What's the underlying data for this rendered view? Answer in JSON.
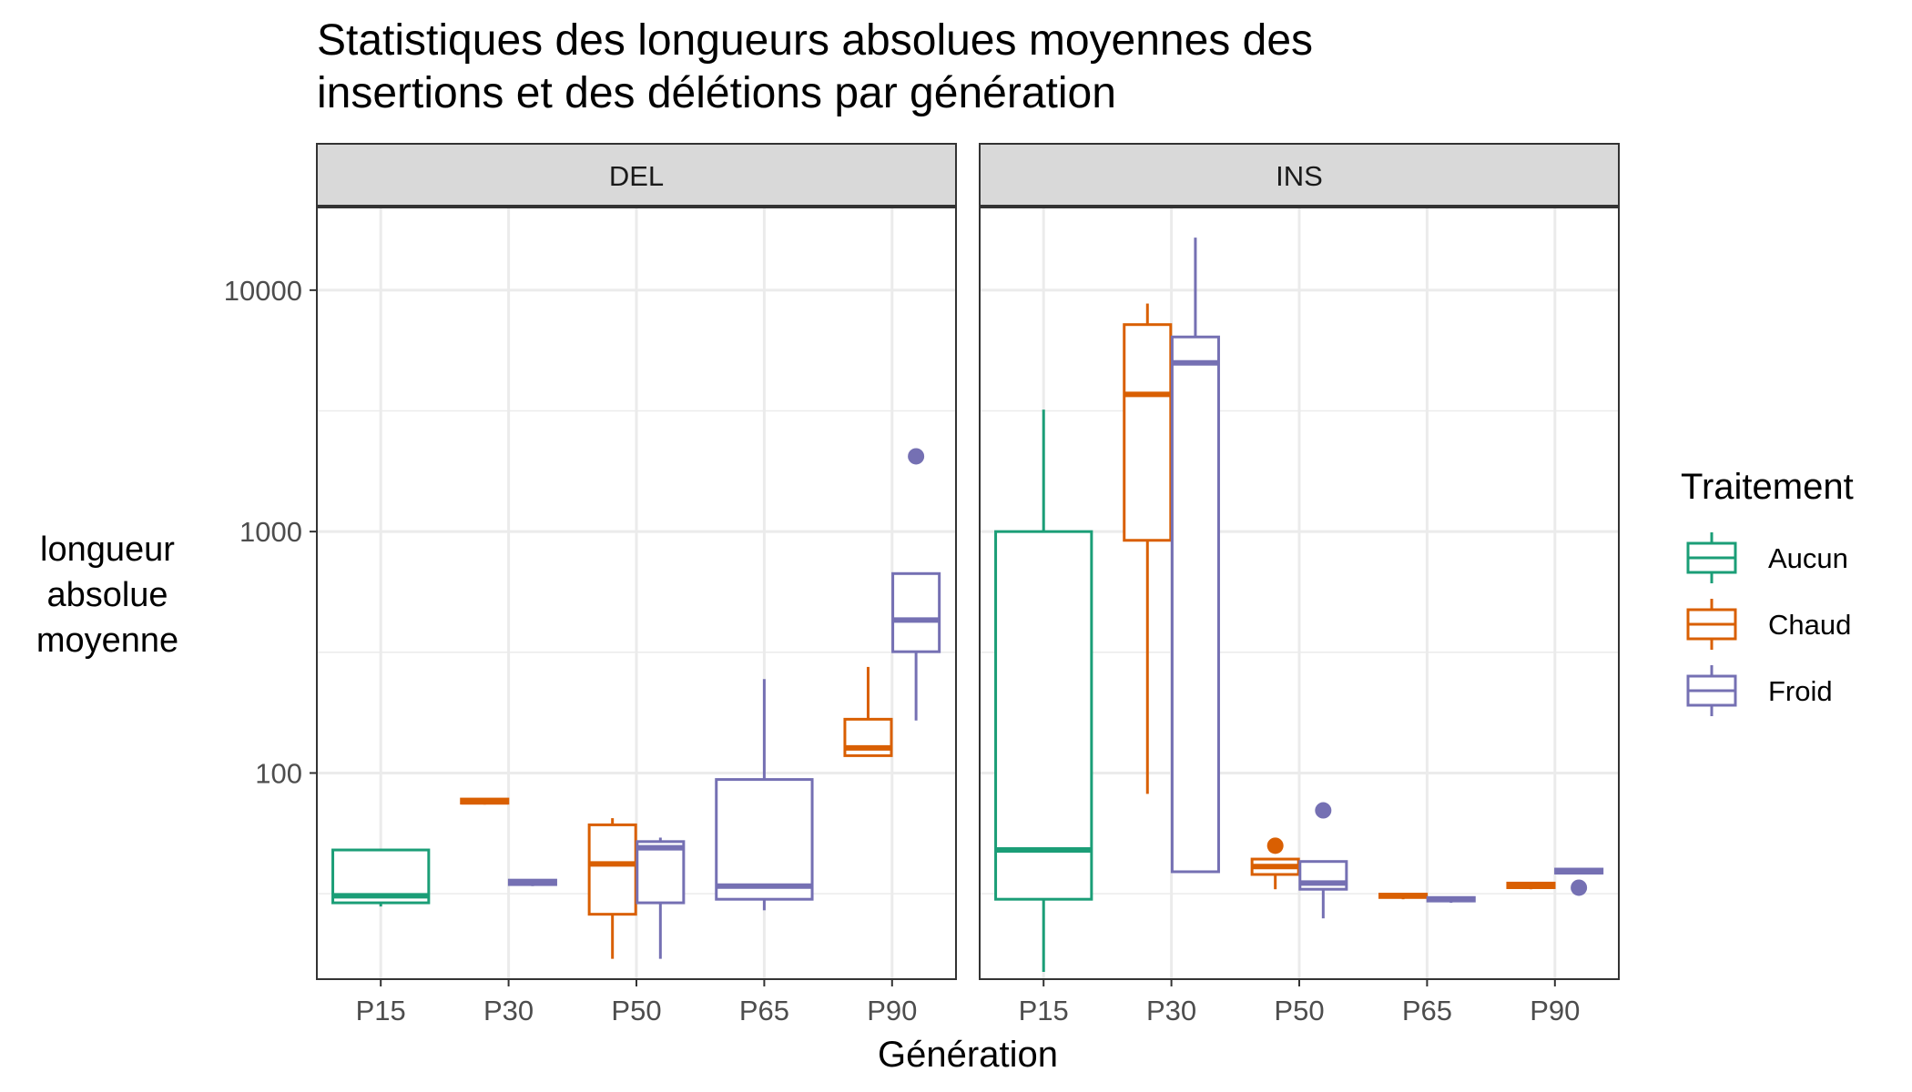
{
  "chart_data": {
    "type": "boxplot",
    "title": [
      "Statistiques des longueurs absolues moyennes des",
      "insertions et des délétions par génération"
    ],
    "xlabel": "Génération",
    "ylabel": [
      "longueur",
      "absolue",
      "moyenne"
    ],
    "y_scale": "log10",
    "ylim": [
      14,
      22000
    ],
    "y_ticks": [
      100,
      1000,
      10000
    ],
    "y_tick_labels": [
      "100",
      "1000",
      "10000"
    ],
    "categories": [
      "P15",
      "P30",
      "P50",
      "P65",
      "P90"
    ],
    "panels": [
      "DEL",
      "INS"
    ],
    "legend": {
      "title": "Traitement",
      "placement": "right",
      "entries": [
        {
          "name": "Aucun",
          "color": "#1B9E77"
        },
        {
          "name": "Chaud",
          "color": "#D95F02"
        },
        {
          "name": "Froid",
          "color": "#7570B3"
        }
      ]
    },
    "boxes": [
      {
        "panel": "DEL",
        "category": "P15",
        "group": "Aucun",
        "min": 28,
        "q1": 29,
        "median": 31,
        "q3": 48,
        "max": 48,
        "outliers": []
      },
      {
        "panel": "DEL",
        "category": "P30",
        "group": "Chaud",
        "min": 74,
        "q1": 75,
        "median": 76,
        "q3": 78,
        "max": 78,
        "outliers": []
      },
      {
        "panel": "DEL",
        "category": "P30",
        "group": "Froid",
        "min": 34,
        "q1": 34.5,
        "median": 35,
        "q3": 36,
        "max": 36,
        "outliers": []
      },
      {
        "panel": "DEL",
        "category": "P50",
        "group": "Chaud",
        "min": 17,
        "q1": 26,
        "median": 42,
        "q3": 61,
        "max": 65,
        "outliers": []
      },
      {
        "panel": "DEL",
        "category": "P50",
        "group": "Froid",
        "min": 17,
        "q1": 29,
        "median": 49,
        "q3": 52,
        "max": 54,
        "outliers": []
      },
      {
        "panel": "DEL",
        "category": "P65",
        "group": "Froid",
        "min": 27,
        "q1": 30,
        "median": 34,
        "q3": 94,
        "max": 245,
        "outliers": []
      },
      {
        "panel": "DEL",
        "category": "P90",
        "group": "Chaud",
        "min": 117,
        "q1": 118,
        "median": 127,
        "q3": 167,
        "max": 275,
        "outliers": []
      },
      {
        "panel": "DEL",
        "category": "P90",
        "group": "Froid",
        "min": 165,
        "q1": 318,
        "median": 430,
        "q3": 670,
        "max": 670,
        "outliers": [
          2050
        ]
      },
      {
        "panel": "INS",
        "category": "P15",
        "group": "Aucun",
        "min": 15,
        "q1": 30,
        "median": 48,
        "q3": 1000,
        "max": 3200,
        "outliers": []
      },
      {
        "panel": "INS",
        "category": "P30",
        "group": "Chaud",
        "min": 82,
        "q1": 920,
        "median": 3700,
        "q3": 7200,
        "max": 8800,
        "outliers": []
      },
      {
        "panel": "INS",
        "category": "P30",
        "group": "Froid",
        "min": 39,
        "q1": 39,
        "median": 5000,
        "q3": 6400,
        "max": 16500,
        "outliers": []
      },
      {
        "panel": "INS",
        "category": "P50",
        "group": "Chaud",
        "min": 33,
        "q1": 38,
        "median": 41,
        "q3": 44,
        "max": 44,
        "outliers": [
          50
        ]
      },
      {
        "panel": "INS",
        "category": "P50",
        "group": "Froid",
        "min": 25,
        "q1": 33,
        "median": 35,
        "q3": 43,
        "max": 43,
        "outliers": [
          70
        ]
      },
      {
        "panel": "INS",
        "category": "P65",
        "group": "Chaud",
        "min": 30,
        "q1": 30.5,
        "median": 31,
        "q3": 31.5,
        "max": 31.5,
        "outliers": []
      },
      {
        "panel": "INS",
        "category": "P65",
        "group": "Froid",
        "min": 29,
        "q1": 29.5,
        "median": 30,
        "q3": 30.5,
        "max": 30.5,
        "outliers": []
      },
      {
        "panel": "INS",
        "category": "P90",
        "group": "Chaud",
        "min": 33,
        "q1": 33.5,
        "median": 34,
        "q3": 35,
        "max": 35,
        "outliers": []
      },
      {
        "panel": "INS",
        "category": "P90",
        "group": "Froid",
        "min": 38,
        "q1": 38.5,
        "median": 39,
        "q3": 40,
        "max": 40,
        "outliers": [
          33.5
        ]
      }
    ]
  }
}
